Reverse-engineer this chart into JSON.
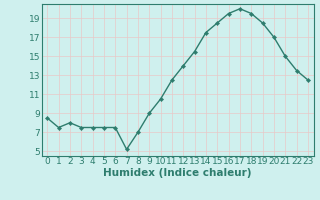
{
  "x": [
    0,
    1,
    2,
    3,
    4,
    5,
    6,
    7,
    8,
    9,
    10,
    11,
    12,
    13,
    14,
    15,
    16,
    17,
    18,
    19,
    20,
    21,
    22,
    23
  ],
  "y": [
    8.5,
    7.5,
    8.0,
    7.5,
    7.5,
    7.5,
    7.5,
    5.2,
    7.0,
    9.0,
    10.5,
    12.5,
    14.0,
    15.5,
    17.5,
    18.5,
    19.5,
    20.0,
    19.5,
    18.5,
    17.0,
    15.0,
    13.5,
    12.5
  ],
  "line_color": "#2e7d6e",
  "marker": "D",
  "marker_size": 2.2,
  "bg_color": "#cff0ee",
  "grid_color": "#e8c8c8",
  "xlabel": "Humidex (Indice chaleur)",
  "ylabel_ticks": [
    5,
    7,
    9,
    11,
    13,
    15,
    17,
    19
  ],
  "xlim": [
    -0.5,
    23.5
  ],
  "ylim": [
    4.5,
    20.5
  ],
  "xtick_labels": [
    "0",
    "1",
    "2",
    "3",
    "4",
    "5",
    "6",
    "7",
    "8",
    "9",
    "10",
    "11",
    "12",
    "13",
    "14",
    "15",
    "16",
    "17",
    "18",
    "19",
    "20",
    "21",
    "22",
    "23"
  ],
  "tick_fontsize": 6.5,
  "xlabel_fontsize": 7.5,
  "line_width": 1.0
}
